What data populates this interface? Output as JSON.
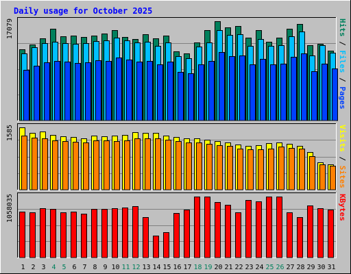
{
  "chart_data": {
    "type": "bar",
    "title": "Daily usage for October 2025",
    "x": [
      "1",
      "2",
      "3",
      "4",
      "5",
      "6",
      "7",
      "8",
      "9",
      "10",
      "11",
      "12",
      "13",
      "14",
      "15",
      "16",
      "17",
      "18",
      "19",
      "20",
      "21",
      "22",
      "23",
      "24",
      "25",
      "26",
      "27",
      "28",
      "29",
      "30",
      "31"
    ],
    "weekend_days": [
      "4",
      "5",
      "11",
      "12",
      "18",
      "19",
      "25",
      "26"
    ],
    "colors": {
      "hits": "#00805c",
      "files": "#00c0ff",
      "pages": "#0040ff",
      "visits": "#ffff00",
      "sites": "#ff8000",
      "kbytes": "#ff0000",
      "title": "#0000ff",
      "weekday_label": "#000000",
      "weekend_label": "#00805c"
    },
    "panels": [
      {
        "id": "hits-files-pages",
        "max_label": "17079",
        "ymax": 17079,
        "right_labels": [
          {
            "text": "Hits",
            "color": "#00805c"
          },
          {
            "text": " / ",
            "color": "#000000"
          },
          {
            "text": "Files",
            "color": "#00c0ff"
          },
          {
            "text": " / ",
            "color": "#000000"
          },
          {
            "text": "Pages",
            "color": "#0040ff"
          }
        ],
        "series": [
          {
            "name": "Hits",
            "color": "#00805c",
            "values": [
              12200,
              13100,
              14100,
              15800,
              14500,
              14600,
              14400,
              14600,
              14900,
              15500,
              14400,
              14000,
              14800,
              14100,
              14600,
              11900,
              11600,
              13400,
              15600,
              17079,
              16000,
              16200,
              14200,
              15500,
              13500,
              14200,
              15800,
              16600,
              12900,
              13200,
              12000
            ]
          },
          {
            "name": "Files",
            "color": "#00c0ff",
            "values": [
              11500,
              12600,
              13300,
              13600,
              13300,
              13200,
              13300,
              13700,
              13800,
              14300,
              13800,
              13400,
              13600,
              12800,
              13400,
              11100,
              10700,
              12700,
              13400,
              15600,
              14700,
              14800,
              12800,
              14000,
              12800,
              13000,
              14500,
              15300,
              11200,
              12900,
              11700
            ]
          },
          {
            "name": "Pages",
            "color": "#0040ff",
            "values": [
              8700,
              9400,
              10000,
              10300,
              10100,
              9900,
              10000,
              10400,
              10300,
              10800,
              10500,
              10100,
              10200,
              9700,
              10100,
              8400,
              8100,
              9600,
              10200,
              11800,
              11100,
              11200,
              9700,
              10600,
              9700,
              9800,
              11000,
              11600,
              8500,
              9800,
              8900
            ]
          }
        ]
      },
      {
        "id": "visits-sites",
        "max_label": "1585",
        "ymax": 1585,
        "right_labels": [
          {
            "text": "Visits",
            "color": "#ffff00"
          },
          {
            "text": " / ",
            "color": "#000000"
          },
          {
            "text": "Sites",
            "color": "#ff8000"
          }
        ],
        "series": [
          {
            "name": "Visits",
            "color": "#ffff00",
            "values": [
              1585,
              1450,
              1480,
              1400,
              1360,
              1340,
              1300,
              1370,
              1360,
              1370,
              1400,
              1470,
              1450,
              1450,
              1380,
              1340,
              1310,
              1300,
              1270,
              1230,
              1200,
              1150,
              1120,
              1130,
              1180,
              1210,
              1160,
              1120,
              950,
              700,
              650
            ]
          },
          {
            "name": "Sites",
            "color": "#ff8000",
            "values": [
              1370,
              1330,
              1300,
              1260,
              1230,
              1220,
              1200,
              1260,
              1250,
              1240,
              1260,
              1300,
              1310,
              1310,
              1280,
              1240,
              1210,
              1200,
              1170,
              1130,
              1110,
              1050,
              1030,
              1020,
              1040,
              1090,
              1070,
              1040,
              860,
              640,
              610
            ]
          }
        ]
      },
      {
        "id": "kbytes",
        "max_label": "1058035",
        "ymax": 1058035,
        "right_labels": [
          {
            "text": "KBytes",
            "color": "#ff0000"
          }
        ],
        "series": [
          {
            "name": "KBytes",
            "color": "#ff0000",
            "values": [
              800000,
              780000,
              860000,
              840000,
              790000,
              800000,
              760000,
              840000,
              840000,
              850000,
              870000,
              890000,
              700000,
              380000,
              440000,
              770000,
              830000,
              1058035,
              1058035,
              960000,
              920000,
              780000,
              1000000,
              970000,
              1058035,
              1058035,
              780000,
              700000,
              900000,
              850000,
              830000
            ]
          }
        ]
      }
    ]
  }
}
